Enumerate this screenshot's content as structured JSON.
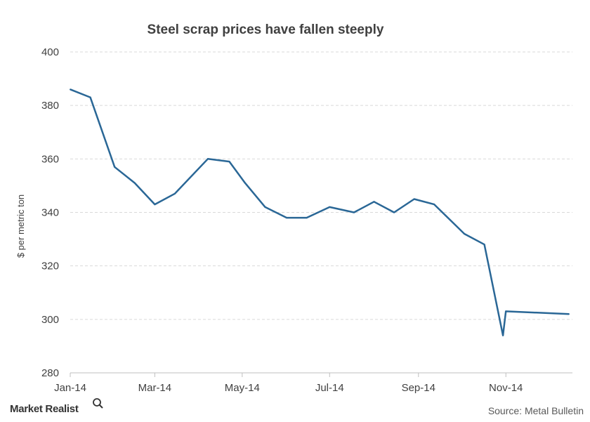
{
  "chart_data": {
    "type": "line",
    "title": "Steel scrap prices have fallen steeply",
    "ylabel": "$ per metric ton",
    "xlabel": "",
    "ylim": [
      280,
      400
    ],
    "yticks": [
      280,
      300,
      320,
      340,
      360,
      380,
      400
    ],
    "x_range": [
      "2014-01-01",
      "2014-12-15"
    ],
    "xticks": [
      {
        "date": "2014-01-01",
        "label": "Jan-14"
      },
      {
        "date": "2014-03-01",
        "label": "Mar-14"
      },
      {
        "date": "2014-05-01",
        "label": "May-14"
      },
      {
        "date": "2014-07-01",
        "label": "Jul-14"
      },
      {
        "date": "2014-09-01",
        "label": "Sep-14"
      },
      {
        "date": "2014-11-01",
        "label": "Nov-14"
      }
    ],
    "grid": "horizontal-dashed",
    "series": [
      {
        "color": "#2a6796",
        "points": [
          {
            "x": "2014-01-01",
            "y": 386
          },
          {
            "x": "2014-01-15",
            "y": 383
          },
          {
            "x": "2014-02-01",
            "y": 357
          },
          {
            "x": "2014-02-15",
            "y": 351
          },
          {
            "x": "2014-03-01",
            "y": 343
          },
          {
            "x": "2014-03-15",
            "y": 347
          },
          {
            "x": "2014-04-07",
            "y": 360
          },
          {
            "x": "2014-04-22",
            "y": 359
          },
          {
            "x": "2014-05-03",
            "y": 351
          },
          {
            "x": "2014-05-17",
            "y": 342
          },
          {
            "x": "2014-06-01",
            "y": 338
          },
          {
            "x": "2014-06-15",
            "y": 338
          },
          {
            "x": "2014-07-01",
            "y": 342
          },
          {
            "x": "2014-07-18",
            "y": 340
          },
          {
            "x": "2014-08-01",
            "y": 344
          },
          {
            "x": "2014-08-15",
            "y": 340
          },
          {
            "x": "2014-08-29",
            "y": 345
          },
          {
            "x": "2014-09-12",
            "y": 343
          },
          {
            "x": "2014-10-03",
            "y": 332
          },
          {
            "x": "2014-10-17",
            "y": 328
          },
          {
            "x": "2014-10-30",
            "y": 294
          },
          {
            "x": "2014-11-01",
            "y": 303
          },
          {
            "x": "2014-12-15",
            "y": 302
          }
        ]
      }
    ]
  },
  "source": "Source: Metal Bulletin",
  "brand": {
    "name": "Market Realist",
    "icon": "magnifier-icon"
  }
}
